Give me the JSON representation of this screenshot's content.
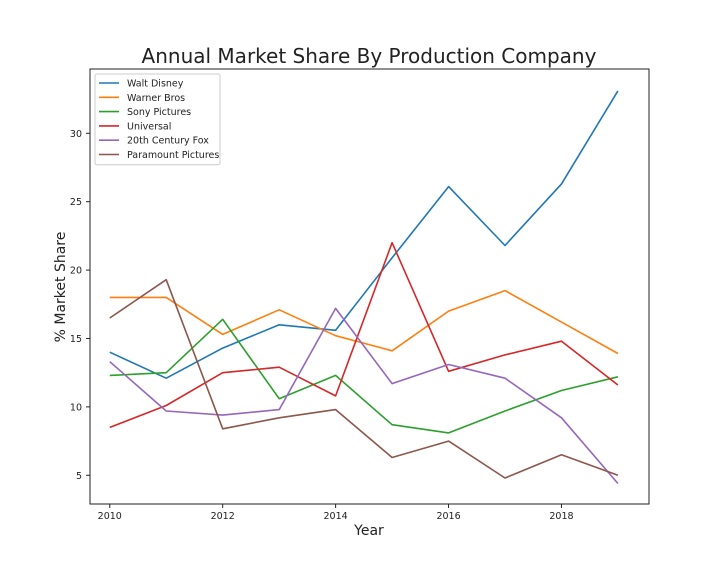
{
  "chart_data": {
    "type": "line",
    "title": "Annual Market Share By Production Company",
    "xlabel": "Year",
    "ylabel": "% Market Share",
    "x": [
      2010,
      2011,
      2012,
      2013,
      2014,
      2015,
      2016,
      2017,
      2018,
      2019
    ],
    "xlim": [
      2009.65,
      2019.55
    ],
    "ylim": [
      2.9,
      34.7
    ],
    "xticks": [
      2010,
      2012,
      2014,
      2016,
      2018
    ],
    "yticks": [
      5,
      10,
      15,
      20,
      25,
      30
    ],
    "grid": false,
    "legend_position": "top-left",
    "series": [
      {
        "name": "Walt Disney",
        "color": "#1f77b4",
        "values": [
          14.0,
          12.1,
          14.3,
          16.0,
          15.6,
          20.9,
          26.1,
          21.8,
          26.3,
          33.1
        ]
      },
      {
        "name": "Warner Bros",
        "color": "#ff7f0e",
        "values": [
          18.0,
          18.0,
          15.3,
          17.1,
          15.2,
          14.1,
          17.0,
          18.5,
          16.2,
          13.9
        ]
      },
      {
        "name": "Sony Pictures",
        "color": "#2ca02c",
        "values": [
          12.3,
          12.5,
          16.4,
          10.6,
          12.3,
          8.7,
          8.1,
          9.7,
          11.2,
          12.2
        ]
      },
      {
        "name": "Universal",
        "color": "#d62728",
        "values": [
          8.5,
          10.1,
          12.5,
          12.9,
          10.8,
          22.0,
          12.6,
          13.8,
          14.8,
          11.6
        ]
      },
      {
        "name": "20th Century Fox",
        "color": "#9467bd",
        "values": [
          13.3,
          9.7,
          9.4,
          9.8,
          17.2,
          11.7,
          13.1,
          12.1,
          9.2,
          4.4
        ]
      },
      {
        "name": "Paramount Pictures",
        "color": "#8c564b",
        "values": [
          16.5,
          19.3,
          8.4,
          9.2,
          9.8,
          6.3,
          7.5,
          4.8,
          6.5,
          5.0
        ]
      }
    ]
  }
}
